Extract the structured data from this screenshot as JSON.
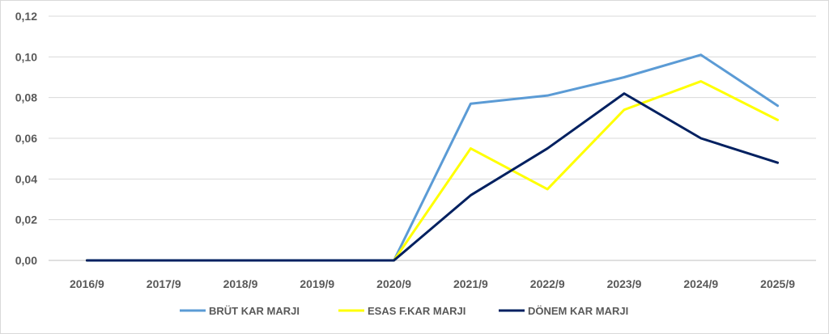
{
  "chart_data": {
    "type": "line",
    "title": "",
    "xlabel": "",
    "ylabel": "",
    "categories": [
      "2016/9",
      "2017/9",
      "2018/9",
      "2019/9",
      "2020/9",
      "2021/9",
      "2022/9",
      "2023/9",
      "2024/9",
      "2025/9"
    ],
    "ylim": [
      0,
      0.12
    ],
    "yticks": [
      "0,00",
      "0,02",
      "0,04",
      "0,06",
      "0,08",
      "0,10",
      "0,12"
    ],
    "grid": true,
    "legend": "bottom",
    "series": [
      {
        "name": "BRÜT KAR MARJI",
        "color": "#5b9bd5",
        "values": [
          0,
          0,
          0,
          0,
          0,
          0.077,
          0.081,
          0.09,
          0.101,
          0.076
        ]
      },
      {
        "name": "ESAS F.KAR MARJI",
        "color": "#ffff00",
        "values": [
          0,
          0,
          0,
          0,
          0,
          0.055,
          0.035,
          0.074,
          0.088,
          0.069
        ]
      },
      {
        "name": "DÖNEM KAR MARJI",
        "color": "#002060",
        "values": [
          0,
          0,
          0,
          0,
          0,
          0.032,
          0.055,
          0.082,
          0.06,
          0.048
        ]
      }
    ]
  }
}
